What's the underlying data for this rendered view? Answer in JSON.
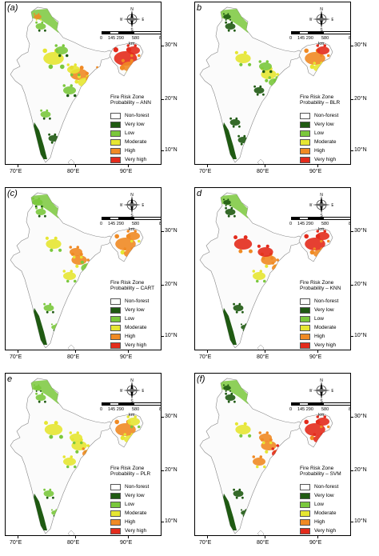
{
  "panels": [
    {
      "label": "(a)",
      "model": "Fire Risk Zone Probability – ANN"
    },
    {
      "label": "b",
      "model": "Fire Risk Zone Probability – BLR"
    },
    {
      "label": "(c)",
      "model": "Fire Risk Zone Probability – CART"
    },
    {
      "label": "d",
      "model": "Fire Risk Zone Probability – KNN"
    },
    {
      "label": "e",
      "model": "Fire Risk Zone Probability – PLR"
    },
    {
      "label": "(f)",
      "model": "Fire Risk Zone Probability – SVM"
    }
  ],
  "legend": [
    {
      "label": "Non-forest",
      "color": "#ffffff"
    },
    {
      "label": "Very low",
      "color": "#1f5a12"
    },
    {
      "label": "Low",
      "color": "#7ac83c"
    },
    {
      "label": "Moderate",
      "color": "#e6e632"
    },
    {
      "label": "High",
      "color": "#f08a24"
    },
    {
      "label": "Very high",
      "color": "#e32b1c"
    }
  ],
  "latitudes": [
    "30°N",
    "20°N",
    "10°N"
  ],
  "longitudes": [
    "70°E",
    "80°E",
    "90°E"
  ],
  "scale": {
    "ticks": [
      "0",
      "145 290",
      "580",
      "870"
    ],
    "unit": "km"
  },
  "compass": {
    "n": "N",
    "s": "S",
    "e": "E",
    "w": "W"
  }
}
